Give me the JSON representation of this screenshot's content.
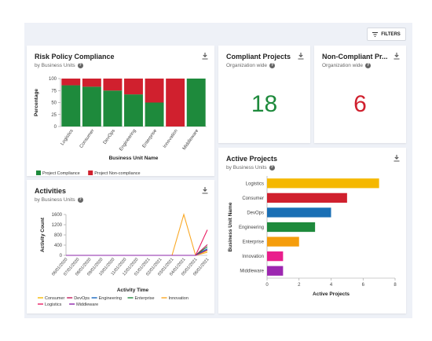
{
  "toolbar": {
    "filters_label": "FILTERS"
  },
  "risk_card": {
    "title": "Risk Policy Compliance",
    "subtitle": "by Business Units"
  },
  "compliant_card": {
    "title": "Compliant Projects",
    "subtitle": "Organization wide",
    "value": "18",
    "color": "#1e8a3c"
  },
  "noncompliant_card": {
    "title": "Non-Compliant Pr...",
    "subtitle": "Organization wide",
    "value": "6",
    "color": "#d0202e"
  },
  "activities_card": {
    "title": "Activities",
    "subtitle": "by Business Units"
  },
  "active_card": {
    "title": "Active Projects",
    "subtitle": "by Business Units"
  },
  "chart_data": [
    {
      "type": "bar",
      "stacked": true,
      "categories": [
        "Logistics",
        "Consumer",
        "DevOps",
        "Engineering",
        "Enterprise",
        "Innovation",
        "Middleware"
      ],
      "series": [
        {
          "name": "Project Compliance",
          "color": "#1e8a3c",
          "values": [
            86,
            83,
            75,
            67,
            50,
            0,
            100
          ]
        },
        {
          "name": "Project Non-compliance",
          "color": "#d0202e",
          "values": [
            14,
            17,
            25,
            33,
            50,
            100,
            0
          ]
        }
      ],
      "xlabel": "Business Unit Name",
      "ylabel": "Percentage",
      "ylim": [
        0,
        100
      ],
      "yticks": [
        0,
        25,
        50,
        75,
        100
      ],
      "legend": "bottom-left"
    },
    {
      "type": "line",
      "x": [
        "06/01/2020",
        "07/01/2020",
        "08/01/2020",
        "09/01/2020",
        "10/01/2020",
        "11/01/2020",
        "12/01/2020",
        "01/01/2021",
        "02/01/2021",
        "03/01/2021",
        "04/01/2021",
        "05/01/2021",
        "06/01/2021"
      ],
      "series": [
        {
          "name": "Consumer",
          "color": "#f5b800",
          "values": [
            0,
            0,
            0,
            0,
            0,
            0,
            0,
            0,
            0,
            0,
            0,
            0,
            180
          ]
        },
        {
          "name": "DevOps",
          "color": "#c2185b",
          "values": [
            0,
            0,
            0,
            0,
            0,
            0,
            0,
            0,
            0,
            0,
            0,
            0,
            420
          ]
        },
        {
          "name": "Engineering",
          "color": "#1565c0",
          "values": [
            0,
            0,
            0,
            0,
            0,
            0,
            0,
            0,
            0,
            0,
            0,
            0,
            260
          ]
        },
        {
          "name": "Enterprise",
          "color": "#1e8a3c",
          "values": [
            0,
            0,
            0,
            0,
            0,
            0,
            0,
            0,
            0,
            0,
            0,
            0,
            340
          ]
        },
        {
          "name": "Innovation",
          "color": "#f9a825",
          "values": [
            0,
            0,
            0,
            0,
            0,
            0,
            0,
            0,
            0,
            0,
            1600,
            0,
            120
          ]
        },
        {
          "name": "Logistics",
          "color": "#e91e63",
          "values": [
            0,
            0,
            0,
            0,
            0,
            0,
            0,
            0,
            0,
            0,
            0,
            0,
            1000
          ]
        },
        {
          "name": "Middleware",
          "color": "#8e24aa",
          "values": [
            0,
            0,
            0,
            0,
            0,
            0,
            0,
            0,
            0,
            0,
            0,
            0,
            220
          ]
        }
      ],
      "xlabel": "Activity Time",
      "ylabel": "Activity Count",
      "ylim": [
        0,
        1600
      ],
      "yticks": [
        0,
        400,
        800,
        1200,
        1600
      ],
      "legend": "bottom"
    },
    {
      "type": "bar",
      "orientation": "horizontal",
      "categories": [
        "Logistics",
        "Consumer",
        "DevOps",
        "Engineering",
        "Enterprise",
        "Innovation",
        "Middleware"
      ],
      "values": [
        7,
        5,
        4,
        3,
        2,
        1,
        1
      ],
      "colors": [
        "#f5b800",
        "#d0202e",
        "#1a6fb5",
        "#1e8a3c",
        "#f59d0c",
        "#e91e8c",
        "#9c27b0"
      ],
      "xlabel": "Active Projects",
      "ylabel": "Business Unit Name",
      "xlim": [
        0,
        8
      ],
      "xticks": [
        0,
        2,
        4,
        6,
        8
      ]
    }
  ]
}
